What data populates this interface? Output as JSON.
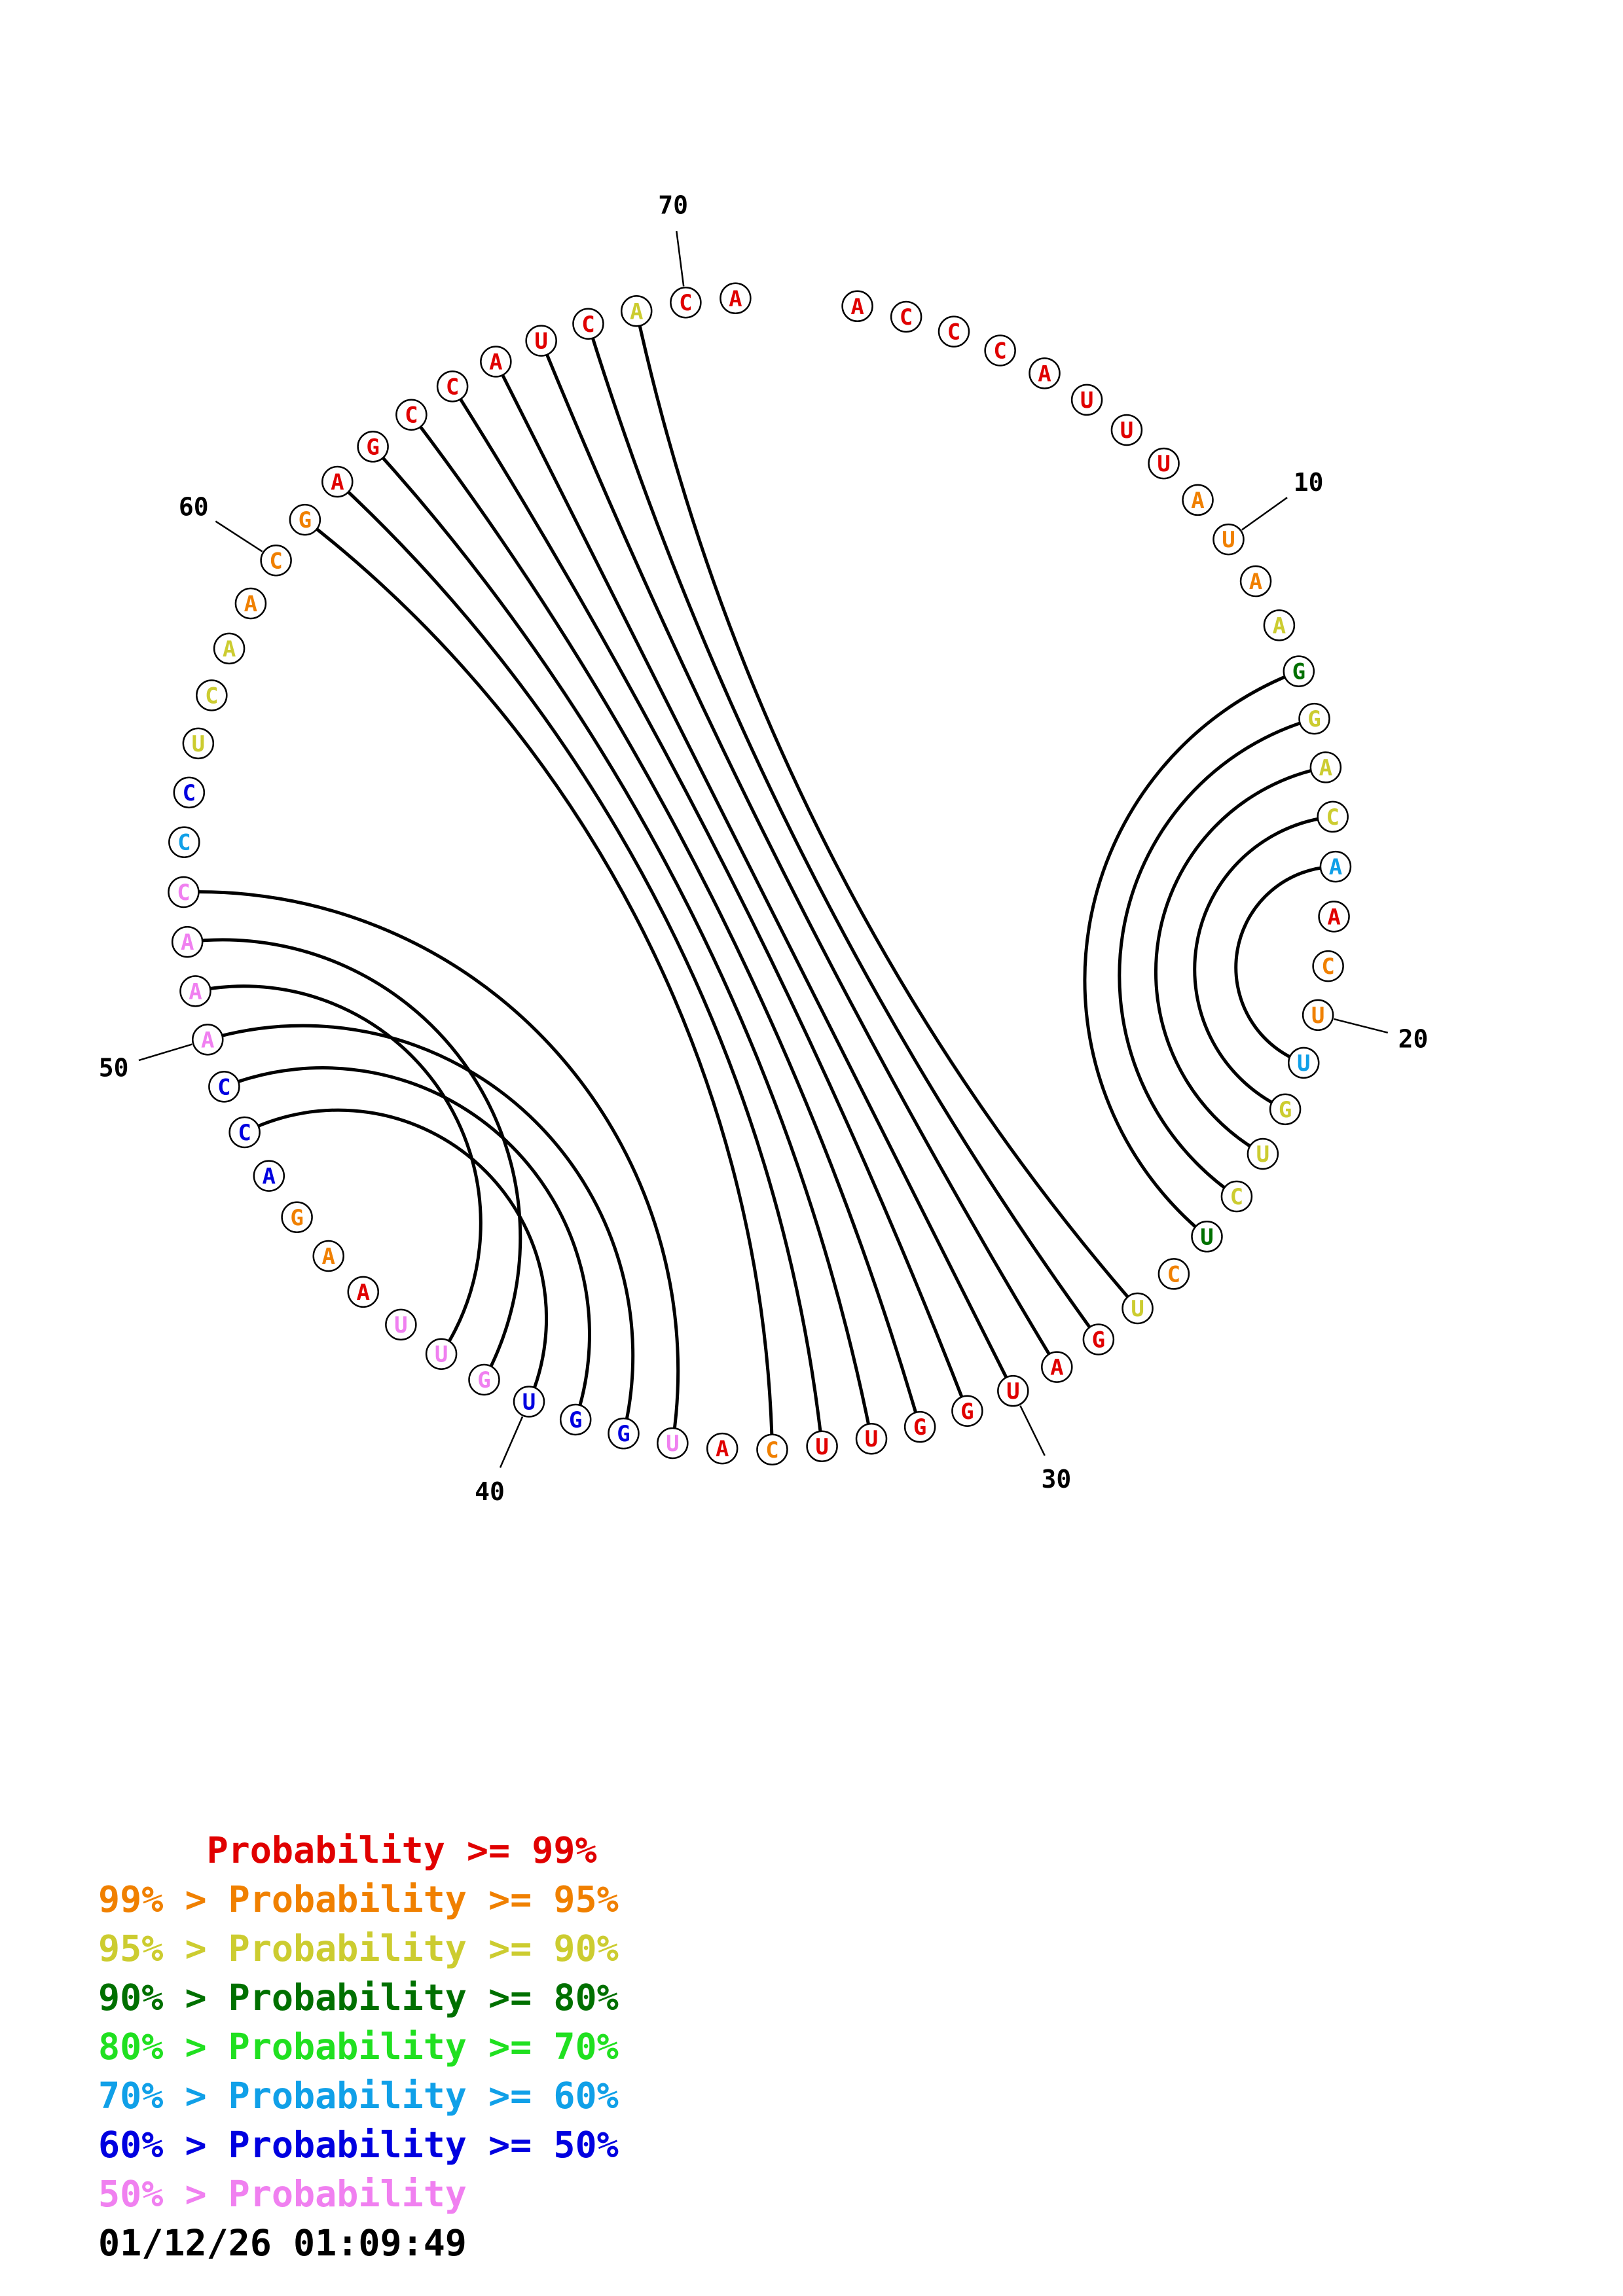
{
  "colors": {
    "c99": "#e00000",
    "c95": "#f08000",
    "c90": "#cccc30",
    "c80": "#007000",
    "c70": "#20e020",
    "c60": "#10a0e8",
    "c50": "#0000e0",
    "clow": "#f080f0"
  },
  "sequence": [
    {
      "base": "A",
      "color": "c99"
    },
    {
      "base": "C",
      "color": "c99"
    },
    {
      "base": "C",
      "color": "c99"
    },
    {
      "base": "C",
      "color": "c99"
    },
    {
      "base": "A",
      "color": "c99"
    },
    {
      "base": "U",
      "color": "c99"
    },
    {
      "base": "U",
      "color": "c99"
    },
    {
      "base": "U",
      "color": "c99"
    },
    {
      "base": "A",
      "color": "c95"
    },
    {
      "base": "U",
      "color": "c95"
    },
    {
      "base": "A",
      "color": "c95"
    },
    {
      "base": "A",
      "color": "c90"
    },
    {
      "base": "G",
      "color": "c80"
    },
    {
      "base": "G",
      "color": "c90"
    },
    {
      "base": "A",
      "color": "c90"
    },
    {
      "base": "C",
      "color": "c90"
    },
    {
      "base": "A",
      "color": "c60"
    },
    {
      "base": "A",
      "color": "c99"
    },
    {
      "base": "C",
      "color": "c95"
    },
    {
      "base": "U",
      "color": "c95"
    },
    {
      "base": "U",
      "color": "c60"
    },
    {
      "base": "G",
      "color": "c90"
    },
    {
      "base": "U",
      "color": "c90"
    },
    {
      "base": "C",
      "color": "c90"
    },
    {
      "base": "U",
      "color": "c80"
    },
    {
      "base": "C",
      "color": "c95"
    },
    {
      "base": "U",
      "color": "c90"
    },
    {
      "base": "G",
      "color": "c99"
    },
    {
      "base": "A",
      "color": "c99"
    },
    {
      "base": "U",
      "color": "c99"
    },
    {
      "base": "G",
      "color": "c99"
    },
    {
      "base": "G",
      "color": "c99"
    },
    {
      "base": "U",
      "color": "c99"
    },
    {
      "base": "U",
      "color": "c99"
    },
    {
      "base": "C",
      "color": "c95"
    },
    {
      "base": "A",
      "color": "c99"
    },
    {
      "base": "U",
      "color": "clow"
    },
    {
      "base": "G",
      "color": "c50"
    },
    {
      "base": "G",
      "color": "c50"
    },
    {
      "base": "U",
      "color": "c50"
    },
    {
      "base": "G",
      "color": "clow"
    },
    {
      "base": "U",
      "color": "clow"
    },
    {
      "base": "U",
      "color": "clow"
    },
    {
      "base": "A",
      "color": "c99"
    },
    {
      "base": "A",
      "color": "c95"
    },
    {
      "base": "G",
      "color": "c95"
    },
    {
      "base": "A",
      "color": "c50"
    },
    {
      "base": "C",
      "color": "c50"
    },
    {
      "base": "C",
      "color": "c50"
    },
    {
      "base": "A",
      "color": "clow"
    },
    {
      "base": "A",
      "color": "clow"
    },
    {
      "base": "A",
      "color": "clow"
    },
    {
      "base": "C",
      "color": "clow"
    },
    {
      "base": "C",
      "color": "c60"
    },
    {
      "base": "C",
      "color": "c50"
    },
    {
      "base": "U",
      "color": "c90"
    },
    {
      "base": "C",
      "color": "c90"
    },
    {
      "base": "A",
      "color": "c90"
    },
    {
      "base": "A",
      "color": "c95"
    },
    {
      "base": "C",
      "color": "c95"
    },
    {
      "base": "G",
      "color": "c95"
    },
    {
      "base": "A",
      "color": "c99"
    },
    {
      "base": "G",
      "color": "c99"
    },
    {
      "base": "C",
      "color": "c99"
    },
    {
      "base": "C",
      "color": "c99"
    },
    {
      "base": "A",
      "color": "c99"
    },
    {
      "base": "U",
      "color": "c99"
    },
    {
      "base": "C",
      "color": "c99"
    },
    {
      "base": "A",
      "color": "c90"
    },
    {
      "base": "C",
      "color": "c99"
    },
    {
      "base": "A",
      "color": "c99"
    }
  ],
  "pairs": [
    [
      13,
      25
    ],
    [
      14,
      24
    ],
    [
      15,
      23
    ],
    [
      16,
      22
    ],
    [
      17,
      21
    ],
    [
      27,
      69
    ],
    [
      28,
      68
    ],
    [
      29,
      67
    ],
    [
      30,
      66
    ],
    [
      31,
      65
    ],
    [
      32,
      64
    ],
    [
      33,
      63
    ],
    [
      34,
      62
    ],
    [
      35,
      61
    ],
    [
      37,
      53
    ],
    [
      38,
      50
    ],
    [
      39,
      49
    ],
    [
      40,
      48
    ],
    [
      41,
      52
    ],
    [
      42,
      51
    ]
  ],
  "position_labels": [
    {
      "index": 10,
      "text": "10"
    },
    {
      "index": 20,
      "text": "20"
    },
    {
      "index": 30,
      "text": "30"
    },
    {
      "index": 40,
      "text": "40"
    },
    {
      "index": 50,
      "text": "50"
    },
    {
      "index": 60,
      "text": "60"
    },
    {
      "index": 70,
      "text": "70"
    }
  ],
  "legend": [
    {
      "text": "     Probability >= 99%",
      "color": "c99"
    },
    {
      "text": "99% > Probability >= 95%",
      "color": "c95"
    },
    {
      "text": "95% > Probability >= 90%",
      "color": "c90"
    },
    {
      "text": "90% > Probability >= 80%",
      "color": "c80"
    },
    {
      "text": "80% > Probability >= 70%",
      "color": "c70"
    },
    {
      "text": "70% > Probability >= 60%",
      "color": "c60"
    },
    {
      "text": "60% > Probability >= 50%",
      "color": "c50"
    },
    {
      "text": "50% > Probability",
      "color": "clow"
    }
  ],
  "timestamp": "01/12/26 01:09:49"
}
